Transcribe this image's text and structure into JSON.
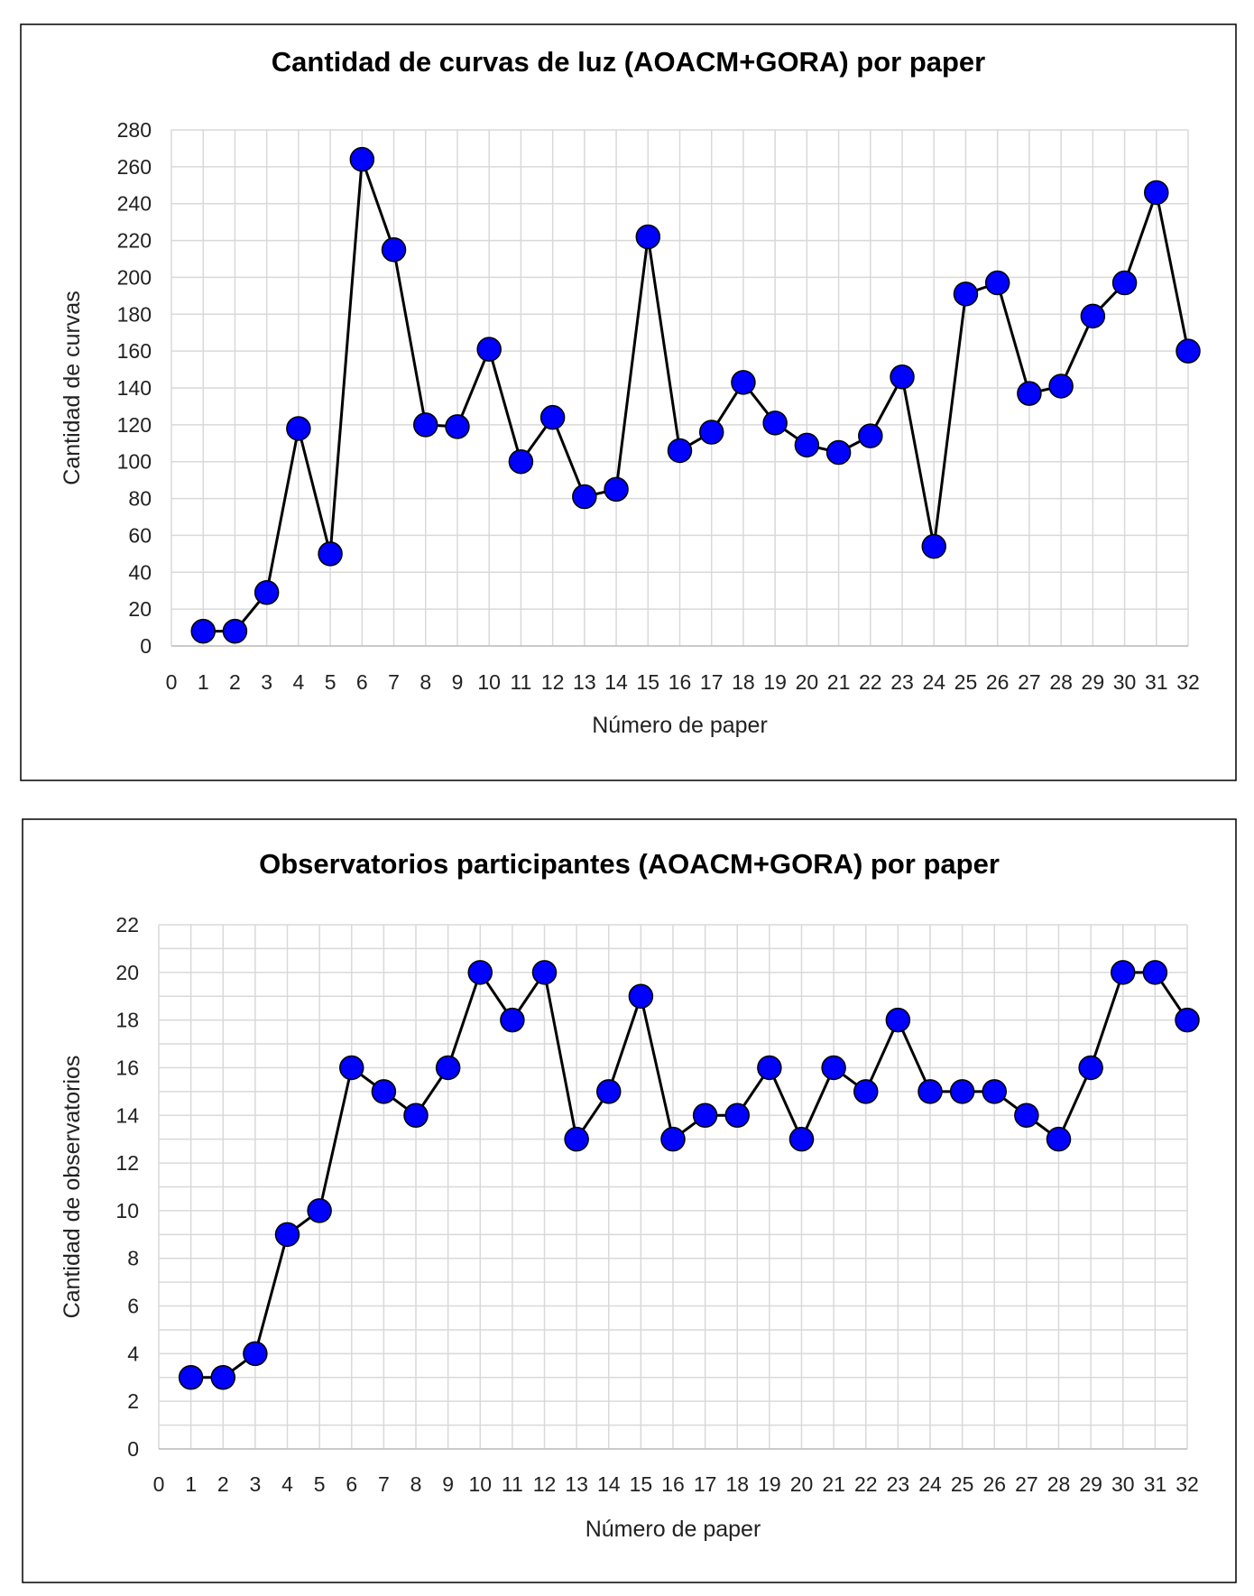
{
  "chart_data": [
    {
      "type": "line",
      "title": "Cantidad de curvas de luz (AOACM+GORA) por paper",
      "xlabel": "Número de paper",
      "ylabel": "Cantidad de curvas",
      "xlim": [
        0,
        32
      ],
      "ylim": [
        0,
        280
      ],
      "x_ticks": [
        0,
        1,
        2,
        3,
        4,
        5,
        6,
        7,
        8,
        9,
        10,
        11,
        12,
        13,
        14,
        15,
        16,
        17,
        18,
        19,
        20,
        21,
        22,
        23,
        24,
        25,
        26,
        27,
        28,
        29,
        30,
        31,
        32
      ],
      "y_ticks": [
        0,
        20,
        40,
        60,
        80,
        100,
        120,
        140,
        160,
        180,
        200,
        220,
        240,
        260,
        280
      ],
      "y_minor_step": 20,
      "grid": true,
      "marker_color": "#0000FF",
      "line_color": "#000000",
      "x": [
        1,
        2,
        3,
        4,
        5,
        6,
        7,
        8,
        9,
        10,
        11,
        12,
        13,
        14,
        15,
        16,
        17,
        18,
        19,
        20,
        21,
        22,
        23,
        24,
        25,
        26,
        27,
        28,
        29,
        30,
        31,
        32
      ],
      "values": [
        8,
        8,
        29,
        118,
        50,
        264,
        215,
        120,
        119,
        161,
        100,
        124,
        81,
        85,
        222,
        106,
        116,
        143,
        121,
        109,
        105,
        114,
        146,
        54,
        191,
        197,
        137,
        141,
        179,
        197,
        246,
        160
      ]
    },
    {
      "type": "line",
      "title": "Observatorios participantes (AOACM+GORA) por paper",
      "xlabel": "Número de paper",
      "ylabel": "Cantidad de observatorios",
      "xlim": [
        0,
        32
      ],
      "ylim": [
        0,
        22
      ],
      "x_ticks": [
        0,
        1,
        2,
        3,
        4,
        5,
        6,
        7,
        8,
        9,
        10,
        11,
        12,
        13,
        14,
        15,
        16,
        17,
        18,
        19,
        20,
        21,
        22,
        23,
        24,
        25,
        26,
        27,
        28,
        29,
        30,
        31,
        32
      ],
      "y_ticks": [
        0,
        2,
        4,
        6,
        8,
        10,
        12,
        14,
        16,
        18,
        20,
        22
      ],
      "y_minor_step": 1,
      "grid": true,
      "marker_color": "#0000FF",
      "line_color": "#000000",
      "x": [
        1,
        2,
        3,
        4,
        5,
        6,
        7,
        8,
        9,
        10,
        11,
        12,
        13,
        14,
        15,
        16,
        17,
        18,
        19,
        20,
        21,
        22,
        23,
        24,
        25,
        26,
        27,
        28,
        29,
        30,
        31,
        32
      ],
      "values": [
        3,
        3,
        4,
        9,
        10,
        16,
        15,
        14,
        16,
        20,
        18,
        20,
        13,
        15,
        19,
        13,
        14,
        14,
        16,
        13,
        16,
        15,
        18,
        15,
        15,
        15,
        14,
        13,
        16,
        20,
        20,
        18
      ]
    }
  ]
}
